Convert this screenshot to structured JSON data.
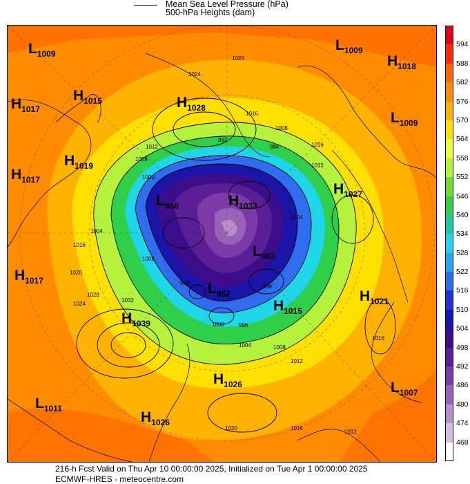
{
  "legend": {
    "mslp": "Mean Sea Level Pressure (hPa)",
    "heights": "500-hPa Heights (dam)"
  },
  "colorbar": {
    "ticks": [
      "594",
      "588",
      "582",
      "576",
      "570",
      "564",
      "558",
      "552",
      "546",
      "540",
      "534",
      "528",
      "522",
      "516",
      "510",
      "504",
      "498",
      "492",
      "486",
      "480",
      "474",
      "468"
    ],
    "colors": [
      "#e0001a",
      "#ff2a00",
      "#ff6200",
      "#ff8c00",
      "#ffb300",
      "#ffe000",
      "#e8ff3a",
      "#b6f23b",
      "#6fde2f",
      "#2fcf4a",
      "#1ec8a0",
      "#1fd6e8",
      "#27a8f0",
      "#2f6ef0",
      "#2333d9",
      "#1a15a8",
      "#3b0d8a",
      "#5a1e96",
      "#7e3ba8",
      "#9a63ba",
      "#b88fcc",
      "#d6bde0",
      "#ffffff"
    ]
  },
  "pressure_centers": [
    {
      "type": "L",
      "value": "1009"
    },
    {
      "type": "L",
      "value": "1009"
    },
    {
      "type": "H",
      "value": "1018"
    },
    {
      "type": "H",
      "value": "1017"
    },
    {
      "type": "H",
      "value": "1015"
    },
    {
      "type": "H",
      "value": "1028"
    },
    {
      "type": "L",
      "value": "1009"
    },
    {
      "type": "H",
      "value": "1019"
    },
    {
      "type": "H",
      "value": "1017"
    },
    {
      "type": "L",
      "value": "968"
    },
    {
      "type": "H",
      "value": "1033"
    },
    {
      "type": "H",
      "value": "1027"
    },
    {
      "type": "L",
      "value": "963"
    },
    {
      "type": "H",
      "value": "1017"
    },
    {
      "type": "L",
      "value": "952"
    },
    {
      "type": "H",
      "value": "1015"
    },
    {
      "type": "H",
      "value": "1021"
    },
    {
      "type": "H",
      "value": "1039"
    },
    {
      "type": "H",
      "value": "1026"
    },
    {
      "type": "L",
      "value": "1007"
    },
    {
      "type": "L",
      "value": "1011"
    },
    {
      "type": "H",
      "value": "1026"
    }
  ],
  "contour_labels": [
    "1020",
    "1024",
    "1016",
    "1008",
    "1012",
    "1008",
    "1000",
    "992",
    "984",
    "1016",
    "1012",
    "1004",
    "1004",
    "1016",
    "1020",
    "1024",
    "1028",
    "1032",
    "1008",
    "992",
    "996",
    "1000",
    "996",
    "1004",
    "1008",
    "1012",
    "1016",
    "1012",
    "1020",
    "1016"
  ],
  "footer": {
    "line1": "216-h Fcst Valid on Thu Apr 10 00:00:00 2025, Initialized on Tue Apr  1 00:00:00 2025",
    "line2": "ECMWF-HRES  - meteocentre.com"
  }
}
